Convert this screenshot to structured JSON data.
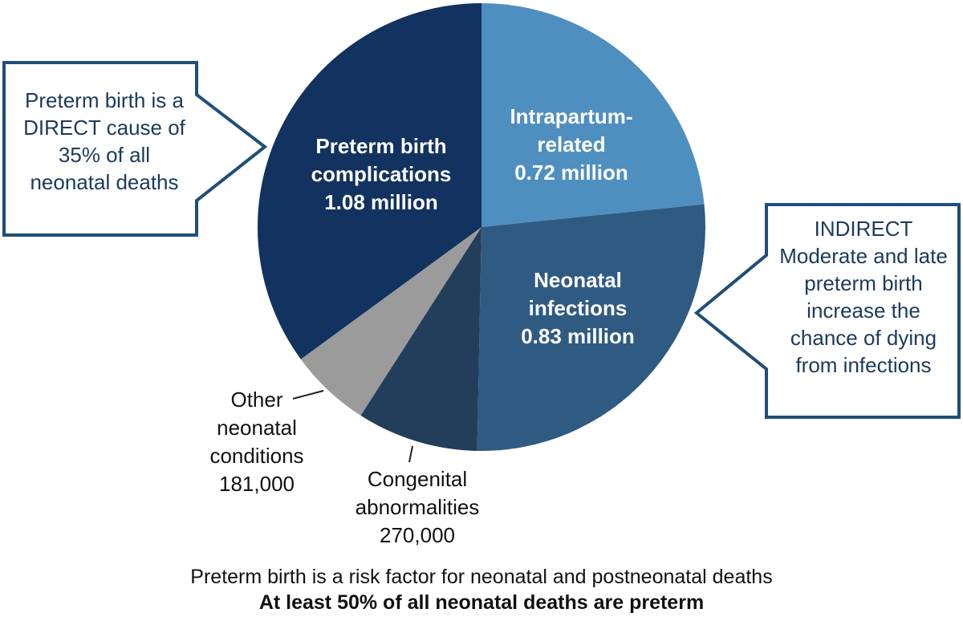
{
  "chart_data": {
    "type": "pie",
    "categories": [
      "Intrapartum-related",
      "Neonatal infections",
      "Congenital abnormalities",
      "Other neonatal conditions",
      "Preterm birth complications"
    ],
    "values": [
      720000,
      830000,
      270000,
      181000,
      1080000
    ],
    "value_labels": [
      "0.72 million",
      "0.83 million",
      "270,000",
      "181,000",
      "1.08 million"
    ],
    "colors": [
      "#4f8fc0",
      "#2f5b82",
      "#223e5a",
      "#9b9b9b",
      "#12325f"
    ],
    "annotations": [
      "Preterm birth is a DIRECT cause of 35% of all neonatal deaths",
      "INDIRECT Moderate and late preterm birth increase the chance of dying from infections"
    ],
    "caption": [
      "Preterm birth is a risk factor for neonatal and postneonatal deaths",
      "At least 50% of all neonatal deaths are preterm"
    ]
  }
}
